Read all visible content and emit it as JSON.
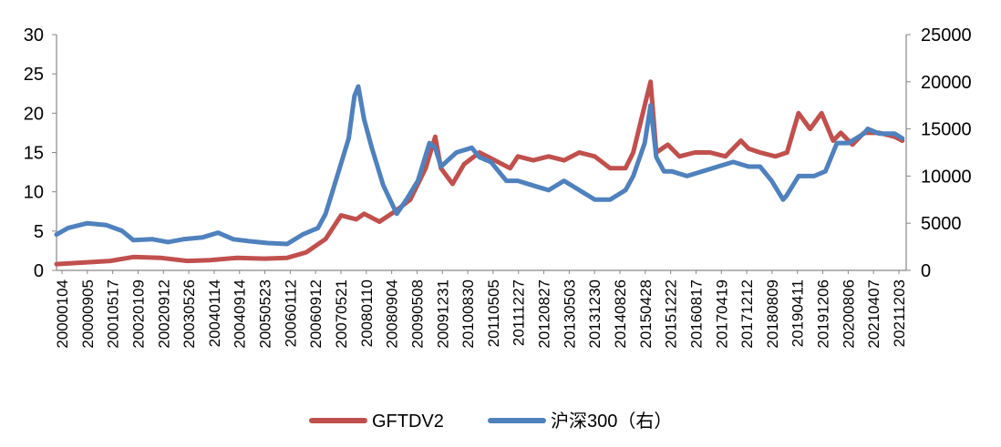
{
  "chart_data": {
    "type": "line",
    "title": "",
    "xlabel": "",
    "ylabel": "",
    "y_left": {
      "min": 0,
      "max": 30,
      "ticks": [
        "0",
        "5",
        "10",
        "15",
        "20",
        "25",
        "30"
      ]
    },
    "y_right": {
      "min": 0,
      "max": 25000,
      "ticks": [
        "0",
        "5000",
        "10000",
        "15000",
        "20000",
        "25000"
      ]
    },
    "x_ticks": [
      "20000104",
      "20000905",
      "20010517",
      "20020109",
      "20020912",
      "20030526",
      "20040114",
      "20040914",
      "20050523",
      "20060112",
      "20060912",
      "20070521",
      "20080110",
      "20080904",
      "20090508",
      "20091231",
      "20100830",
      "20110505",
      "20111227",
      "20120827",
      "20130503",
      "20131230",
      "20140826",
      "20150428",
      "20151222",
      "20160817",
      "20170419",
      "20171212",
      "20180809",
      "20190411",
      "20191206",
      "20200806",
      "20210407",
      "20211203"
    ],
    "grid": false,
    "legend": "bottom-center",
    "series": [
      {
        "name": "GFTDV2",
        "axis": "left",
        "color": "#c0504d",
        "x": [
          2000.0,
          2000.7,
          2001.4,
          2002.0,
          2002.7,
          2003.4,
          2004.0,
          2004.7,
          2005.4,
          2006.0,
          2006.5,
          2007.0,
          2007.4,
          2007.8,
          2008.0,
          2008.4,
          2008.8,
          2009.2,
          2009.6,
          2009.85,
          2010.0,
          2010.3,
          2010.6,
          2011.0,
          2011.4,
          2011.8,
          2012.0,
          2012.4,
          2012.8,
          2013.2,
          2013.6,
          2014.0,
          2014.4,
          2014.8,
          2015.0,
          2015.3,
          2015.45,
          2015.6,
          2015.9,
          2016.2,
          2016.6,
          2017.0,
          2017.4,
          2017.8,
          2018.0,
          2018.3,
          2018.7,
          2019.0,
          2019.3,
          2019.6,
          2019.9,
          2020.2,
          2020.4,
          2020.7,
          2021.0,
          2021.4,
          2021.8,
          2022.0
        ],
        "y": [
          0.8,
          1.0,
          1.2,
          1.7,
          1.6,
          1.2,
          1.3,
          1.6,
          1.5,
          1.6,
          2.3,
          4.0,
          7.0,
          6.5,
          7.2,
          6.2,
          7.5,
          9.0,
          13.0,
          17.0,
          13.0,
          11.0,
          13.5,
          15.0,
          14.0,
          13.0,
          14.5,
          14.0,
          14.5,
          14.0,
          15.0,
          14.5,
          13.0,
          13.0,
          15.0,
          21.0,
          24.0,
          15.0,
          16.0,
          14.5,
          15.0,
          15.0,
          14.5,
          16.5,
          15.5,
          15.0,
          14.5,
          15.0,
          20.0,
          18.0,
          20.0,
          16.5,
          17.5,
          16.0,
          17.5,
          17.5,
          17.0,
          16.5
        ]
      },
      {
        "name": "沪深300（右）",
        "axis": "right",
        "color": "#4f81bd",
        "x": [
          2000.0,
          2000.3,
          2000.8,
          2001.3,
          2001.7,
          2002.0,
          2002.5,
          2002.9,
          2003.3,
          2003.8,
          2004.2,
          2004.6,
          2005.0,
          2005.5,
          2006.0,
          2006.4,
          2006.8,
          2007.0,
          2007.3,
          2007.6,
          2007.75,
          2007.85,
          2008.0,
          2008.2,
          2008.5,
          2008.85,
          2009.1,
          2009.4,
          2009.7,
          2009.85,
          2010.0,
          2010.4,
          2010.8,
          2011.0,
          2011.3,
          2011.7,
          2012.0,
          2012.4,
          2012.8,
          2013.2,
          2013.6,
          2014.0,
          2014.4,
          2014.8,
          2015.0,
          2015.3,
          2015.45,
          2015.6,
          2015.8,
          2016.0,
          2016.4,
          2016.8,
          2017.2,
          2017.6,
          2018.0,
          2018.3,
          2018.6,
          2018.9,
          2019.0,
          2019.3,
          2019.7,
          2020.0,
          2020.3,
          2020.6,
          2021.0,
          2021.1,
          2021.4,
          2021.8,
          2022.0
        ],
        "y": [
          3800,
          4500,
          5000,
          4800,
          4200,
          3200,
          3300,
          3000,
          3300,
          3500,
          4000,
          3300,
          3100,
          2900,
          2800,
          3800,
          4500,
          6000,
          10000,
          14000,
          18500,
          19500,
          16000,
          13000,
          9000,
          6000,
          7500,
          9500,
          13500,
          13000,
          11000,
          12500,
          13000,
          12000,
          11500,
          9500,
          9500,
          9000,
          8500,
          9500,
          8500,
          7500,
          7500,
          8500,
          10000,
          13500,
          17500,
          12000,
          10500,
          10500,
          10000,
          10500,
          11000,
          11500,
          11000,
          11000,
          9500,
          7500,
          8000,
          10000,
          10000,
          10500,
          13500,
          13500,
          14500,
          15000,
          14500,
          14500,
          14000
        ]
      }
    ]
  }
}
